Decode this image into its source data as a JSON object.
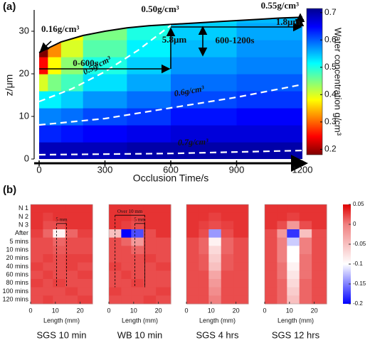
{
  "chart_data": [
    {
      "type": "field",
      "label": "(a)",
      "xlabel": "Occlusion Time/s",
      "ylabel": "z/μm",
      "xlim": [
        0,
        1200
      ],
      "xticks": [
        0,
        300,
        600,
        900,
        1200
      ],
      "ylim": [
        0,
        35
      ],
      "yticks": [
        0,
        10,
        20,
        30
      ],
      "field": {
        "x_edges": [
          0,
          40,
          100,
          200,
          400,
          600,
          900,
          1200
        ],
        "z_edges": [
          0,
          4,
          8,
          12,
          16,
          20,
          24,
          28,
          32,
          36
        ],
        "values": [
          [
            0.69,
            0.69,
            0.69,
            0.69,
            0.7,
            0.7,
            0.7
          ],
          [
            0.63,
            0.63,
            0.64,
            0.65,
            0.66,
            0.67,
            0.67
          ],
          [
            0.58,
            0.58,
            0.59,
            0.61,
            0.62,
            0.64,
            0.65
          ],
          [
            0.52,
            0.52,
            0.54,
            0.57,
            0.59,
            0.61,
            0.62
          ],
          [
            0.4,
            0.45,
            0.48,
            0.53,
            0.56,
            0.59,
            0.6
          ],
          [
            0.25,
            0.38,
            0.44,
            0.5,
            0.54,
            0.57,
            0.58
          ],
          [
            0.18,
            0.32,
            0.4,
            0.47,
            0.52,
            0.55,
            0.57
          ],
          [
            null,
            0.3,
            0.38,
            0.45,
            0.5,
            0.54,
            0.56
          ],
          [
            null,
            null,
            null,
            null,
            null,
            0.53,
            0.55
          ]
        ]
      },
      "boundary": {
        "x": [
          0,
          100,
          200,
          300,
          400,
          500,
          600,
          700,
          800,
          900,
          1000,
          1100,
          1200
        ],
        "z": [
          25,
          27.5,
          29,
          30,
          30.8,
          31.3,
          31.6,
          31.9,
          32.2,
          32.5,
          32.8,
          33.1,
          33.3
        ]
      },
      "contours": [
        {
          "label": "0.5g/cm³",
          "x": [
            0,
            150,
            300,
            450,
            600
          ],
          "z": [
            13.5,
            16.5,
            20.5,
            25.5,
            31.4
          ]
        },
        {
          "label": "0.6g/cm³",
          "x": [
            0,
            300,
            600,
            900,
            1200
          ],
          "z": [
            8,
            9.5,
            12,
            14.5,
            17.5
          ]
        },
        {
          "label": "0.7g/cm³",
          "x": [
            0,
            600,
            1200
          ],
          "z": [
            1,
            1.3,
            2
          ]
        }
      ],
      "annotations": [
        "0.16g/cm³",
        "0.50g/cm³",
        "0.55g/cm³",
        "5.8μm",
        "1.8μm",
        "0-600s",
        "600-1200s"
      ],
      "colorbar": {
        "label": "Water concentration g/cm³",
        "clim": [
          0.18,
          0.715
        ],
        "ticks": [
          0.2,
          0.3,
          0.4,
          0.5,
          0.6,
          0.7
        ],
        "colormap": [
          "#7f0000",
          "#ff0000",
          "#ff8000",
          "#ffff00",
          "#80ff80",
          "#00ffff",
          "#0080ff",
          "#0000ff",
          "#00008f"
        ]
      }
    },
    {
      "type": "heatmap",
      "label": "(b)",
      "xlabel": "Length (mm)",
      "xlim": [
        0,
        25
      ],
      "xticks": [
        0,
        10,
        20
      ],
      "x_edges": [
        0,
        5,
        9,
        14,
        19,
        25
      ],
      "rows": [
        "N 1",
        "N 2",
        "N 3",
        "After",
        "5 mins",
        "10 mins",
        "20 mins",
        "40 mins",
        "60 mins",
        "80 mins",
        "100 mins",
        "120 mins"
      ],
      "clim": [
        -0.2,
        0.05
      ],
      "cticks": [
        0.05,
        0,
        -0.05,
        -0.1,
        -0.15,
        -0.2
      ],
      "colormap": [
        "#0000ff",
        "#ffffff",
        "#f08080",
        "#e00000"
      ],
      "colormap_stops": [
        -0.2,
        -0.1,
        0,
        0.05
      ],
      "panels": [
        {
          "title": "SGS 10 min",
          "annotations": [
            "5 mm"
          ],
          "values": [
            [
              0.03,
              0.03,
              0.03,
              0.03,
              0.03
            ],
            [
              0.03,
              0.025,
              0.03,
              0.03,
              0.03
            ],
            [
              0.03,
              0.02,
              0.02,
              0.03,
              0.03
            ],
            [
              0.025,
              0.01,
              -0.09,
              0.01,
              0.025
            ],
            [
              0.02,
              0.02,
              0.01,
              0.02,
              0.02
            ],
            [
              0.02,
              0.02,
              0.015,
              0.02,
              0.02
            ],
            [
              0.02,
              0.025,
              0.02,
              0.025,
              0.025
            ],
            [
              0.025,
              0.02,
              0.02,
              0.025,
              0.02
            ],
            [
              0.02,
              0.025,
              0.02,
              0.02,
              0.025
            ],
            [
              0.025,
              0.02,
              0.025,
              0.02,
              0.02
            ],
            [
              0.02,
              0.02,
              0.02,
              0.025,
              0.02
            ],
            [
              0.02,
              0.025,
              0.02,
              0.02,
              0.025
            ]
          ]
        },
        {
          "title": "WB 10 min",
          "annotations": [
            "Over 10 mm",
            "5 mm"
          ],
          "values": [
            [
              0.03,
              0.03,
              0.03,
              0.03,
              0.03
            ],
            [
              0.03,
              0.03,
              0.025,
              0.03,
              0.03
            ],
            [
              0.03,
              0.025,
              0.02,
              0.03,
              0.03
            ],
            [
              -0.05,
              -0.2,
              -0.17,
              0.02,
              0.03
            ],
            [
              0.02,
              0.01,
              -0.02,
              0.02,
              0.02
            ],
            [
              0.02,
              0.02,
              0.01,
              0.02,
              0.02
            ],
            [
              0.02,
              0.02,
              0.02,
              0.025,
              0.02
            ],
            [
              0.025,
              0.02,
              0.02,
              0.02,
              0.025
            ],
            [
              0.02,
              0.025,
              0.02,
              0.02,
              0.02
            ],
            [
              0.02,
              0.02,
              0.025,
              0.02,
              0.02
            ],
            [
              0.025,
              0.02,
              0.02,
              0.02,
              0.025
            ],
            [
              0.02,
              0.02,
              0.02,
              0.025,
              0.02
            ]
          ]
        },
        {
          "title": "SGS 4 hrs",
          "values": [
            [
              0.03,
              0.03,
              0.03,
              0.03,
              0.03
            ],
            [
              0.03,
              0.03,
              0.025,
              0.03,
              0.03
            ],
            [
              0.03,
              0.025,
              0.02,
              0.025,
              0.03
            ],
            [
              0.03,
              0.02,
              -0.14,
              0.02,
              0.03
            ],
            [
              0.02,
              0.01,
              -0.09,
              0.01,
              0.02
            ],
            [
              0.02,
              0.01,
              -0.07,
              0.01,
              0.02
            ],
            [
              0.02,
              0.015,
              -0.06,
              0.015,
              0.02
            ],
            [
              0.02,
              0.015,
              -0.05,
              0.015,
              0.02
            ],
            [
              0.02,
              0.02,
              -0.03,
              0.02,
              0.02
            ],
            [
              0.02,
              0.02,
              -0.02,
              0.02,
              0.02
            ],
            [
              0.02,
              0.02,
              -0.01,
              0.02,
              0.02
            ],
            [
              0.02,
              0.02,
              0.0,
              0.02,
              0.02
            ]
          ]
        },
        {
          "title": "SGS 12 hrs",
          "values": [
            [
              0.03,
              0.03,
              0.03,
              0.03,
              0.03
            ],
            [
              0.03,
              0.03,
              0.025,
              0.03,
              0.03
            ],
            [
              0.03,
              0.02,
              -0.02,
              0.02,
              0.03
            ],
            [
              0.02,
              -0.02,
              -0.18,
              -0.05,
              0.02
            ],
            [
              0.02,
              0.0,
              -0.12,
              0.0,
              0.02
            ],
            [
              0.02,
              0.0,
              -0.1,
              0.0,
              0.02
            ],
            [
              0.02,
              0.0,
              -0.1,
              0.005,
              0.02
            ],
            [
              0.02,
              0.005,
              -0.09,
              0.005,
              0.02
            ],
            [
              0.02,
              0.005,
              -0.08,
              0.005,
              0.02
            ],
            [
              0.02,
              0.01,
              -0.07,
              0.01,
              0.02
            ],
            [
              0.02,
              0.01,
              -0.06,
              0.01,
              0.02
            ],
            [
              0.02,
              0.01,
              -0.05,
              0.01,
              0.02
            ]
          ]
        }
      ]
    }
  ]
}
